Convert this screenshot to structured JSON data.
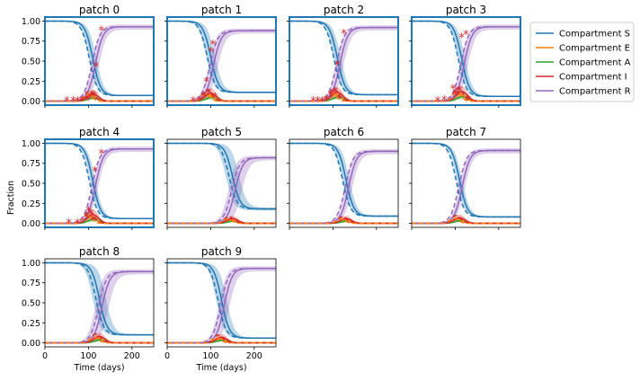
{
  "chart_data": {
    "type": "line",
    "layout": "small-multiples",
    "xlabel": "Time (days)",
    "ylabel": "Fraction",
    "xlim": [
      0,
      250
    ],
    "ylim": [
      -0.05,
      1.05
    ],
    "xticks": [
      0,
      100,
      200
    ],
    "yticks": [
      "0.00",
      "0.25",
      "0.50",
      "0.75",
      "1.00"
    ],
    "legend": {
      "position": "right",
      "entries": [
        {
          "name": "Compartment S",
          "color": "#1f77b4"
        },
        {
          "name": "Compartment E",
          "color": "#ff7f0e"
        },
        {
          "name": "Compartment A",
          "color": "#2ca02c"
        },
        {
          "name": "Compartment I",
          "color": "#d62728"
        },
        {
          "name": "Compartment R",
          "color": "#9467bd"
        }
      ]
    },
    "line_styles": {
      "mean": "solid",
      "truth": "dashed",
      "band": "shaded uncertainty"
    },
    "observed_marker": {
      "symbol": "*",
      "color": "#d62728"
    },
    "panels": [
      {
        "title": "patch 0",
        "highlighted": true,
        "midpoint": 110,
        "band": 8,
        "S_final": 0.07,
        "R_final": 0.93,
        "peak": 0.09,
        "dash_shift": -8,
        "observed": [
          [
            50,
            0.0
          ],
          [
            65,
            0.0
          ],
          [
            75,
            0.0
          ],
          [
            85,
            0.0
          ],
          [
            95,
            0.01
          ],
          [
            100,
            0.02
          ],
          [
            105,
            0.05
          ],
          [
            110,
            0.08
          ],
          [
            115,
            0.06
          ],
          [
            118,
            0.43
          ],
          [
            130,
            0.88
          ]
        ]
      },
      {
        "title": "patch 1",
        "highlighted": true,
        "midpoint": 100,
        "band": 10,
        "S_final": 0.11,
        "R_final": 0.88,
        "peak": 0.1,
        "dash_shift": -8,
        "observed": [
          [
            60,
            0.0
          ],
          [
            75,
            0.01
          ],
          [
            85,
            0.07
          ],
          [
            90,
            0.24
          ],
          [
            95,
            0.1
          ],
          [
            100,
            0.62
          ],
          [
            105,
            0.71
          ],
          [
            110,
            0.05
          ]
        ]
      },
      {
        "title": "patch 2",
        "highlighted": true,
        "midpoint": 110,
        "band": 8,
        "S_final": 0.08,
        "R_final": 0.92,
        "peak": 0.11,
        "dash_shift": -8,
        "observed": [
          [
            55,
            0.0
          ],
          [
            65,
            0.0
          ],
          [
            75,
            0.0
          ],
          [
            85,
            0.02
          ],
          [
            95,
            0.07
          ],
          [
            100,
            0.1
          ],
          [
            105,
            0.12
          ],
          [
            110,
            0.45
          ],
          [
            115,
            0.04
          ],
          [
            125,
            0.84
          ]
        ]
      },
      {
        "title": "patch 3",
        "highlighted": true,
        "midpoint": 115,
        "band": 8,
        "S_final": 0.06,
        "R_final": 0.93,
        "peak": 0.12,
        "dash_shift": -8,
        "observed": [
          [
            60,
            0.0
          ],
          [
            75,
            0.01
          ],
          [
            95,
            0.15
          ],
          [
            100,
            0.1
          ],
          [
            105,
            0.08
          ],
          [
            110,
            0.13
          ],
          [
            115,
            0.79
          ],
          [
            125,
            0.83
          ],
          [
            130,
            0.02
          ]
        ]
      },
      {
        "title": "patch 4",
        "highlighted": true,
        "midpoint": 110,
        "band": 6,
        "S_final": 0.06,
        "R_final": 0.93,
        "peak": 0.11,
        "dash_shift": -8,
        "observed": [
          [
            55,
            0.0
          ],
          [
            75,
            0.0
          ],
          [
            95,
            0.08
          ],
          [
            100,
            0.15
          ],
          [
            105,
            0.12
          ],
          [
            110,
            0.04
          ],
          [
            115,
            0.65
          ],
          [
            130,
            0.87
          ]
        ]
      },
      {
        "title": "patch 5",
        "highlighted": false,
        "midpoint": 150,
        "band": 15,
        "S_final": 0.18,
        "R_final": 0.82,
        "peak": 0.06,
        "dash_shift": -8,
        "observed": []
      },
      {
        "title": "patch 6",
        "highlighted": false,
        "midpoint": 130,
        "band": 8,
        "S_final": 0.09,
        "R_final": 0.9,
        "peak": 0.06,
        "dash_shift": -8,
        "observed": []
      },
      {
        "title": "patch 7",
        "highlighted": false,
        "midpoint": 110,
        "band": 6,
        "S_final": 0.08,
        "R_final": 0.91,
        "peak": 0.07,
        "dash_shift": -8,
        "observed": []
      },
      {
        "title": "patch 8",
        "highlighted": false,
        "midpoint": 125,
        "band": 15,
        "S_final": 0.1,
        "R_final": 0.89,
        "peak": 0.08,
        "dash_shift": -8,
        "observed": []
      },
      {
        "title": "patch 9",
        "highlighted": false,
        "midpoint": 125,
        "band": 12,
        "S_final": 0.06,
        "R_final": 0.93,
        "peak": 0.07,
        "dash_shift": -8,
        "observed": []
      }
    ]
  }
}
